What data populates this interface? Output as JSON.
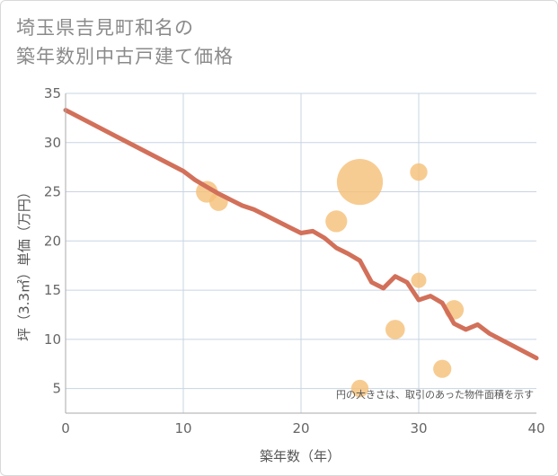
{
  "title_lines": [
    "埼玉県吉見町和名の",
    "築年数別中古戸建て価格"
  ],
  "colors": {
    "bubble": "#f5c17a",
    "trend": "#d2705a",
    "grid": "#c8d4e3",
    "frame": "#aaaaaa"
  },
  "chart_data": {
    "type": "scatter",
    "title": "埼玉県吉見町和名の築年数別中古戸建て価格",
    "xlabel": "築年数（年）",
    "ylabel": "坪（3.3㎡）単価（万円）",
    "xlim": [
      0,
      40
    ],
    "ylim": [
      2.5,
      35
    ],
    "xticks": [
      0,
      10,
      20,
      30,
      40
    ],
    "yticks": [
      5,
      10,
      15,
      20,
      25,
      30,
      35
    ],
    "grid": true,
    "note": "円の大きさは、取引のあった物件面積を示す",
    "bubbles": [
      {
        "x": 12,
        "y": 25,
        "size": 2
      },
      {
        "x": 13,
        "y": 24,
        "size": 1.5
      },
      {
        "x": 23,
        "y": 22,
        "size": 2
      },
      {
        "x": 25,
        "y": 26,
        "size": 6
      },
      {
        "x": 25,
        "y": 5,
        "size": 1.3
      },
      {
        "x": 28,
        "y": 11,
        "size": 1.6
      },
      {
        "x": 30,
        "y": 27,
        "size": 1.3
      },
      {
        "x": 30,
        "y": 16,
        "size": 1
      },
      {
        "x": 32,
        "y": 7,
        "size": 1.4
      },
      {
        "x": 33,
        "y": 13,
        "size": 1.6
      }
    ],
    "trend": {
      "x": [
        0,
        5,
        10,
        11,
        12,
        13,
        14,
        15,
        16,
        17,
        18,
        19,
        20,
        21,
        22,
        23,
        24,
        25,
        26,
        27,
        28,
        29,
        30,
        31,
        32,
        33,
        34,
        35,
        36,
        40
      ],
      "y": [
        33.3,
        30.2,
        27.1,
        26.2,
        25.5,
        24.8,
        24.2,
        23.6,
        23.2,
        22.6,
        22.0,
        21.4,
        20.8,
        21.0,
        20.3,
        19.3,
        18.7,
        18.0,
        15.8,
        15.2,
        16.4,
        15.8,
        14.0,
        14.4,
        13.7,
        11.6,
        11.0,
        11.5,
        10.6,
        8.1
      ]
    }
  }
}
